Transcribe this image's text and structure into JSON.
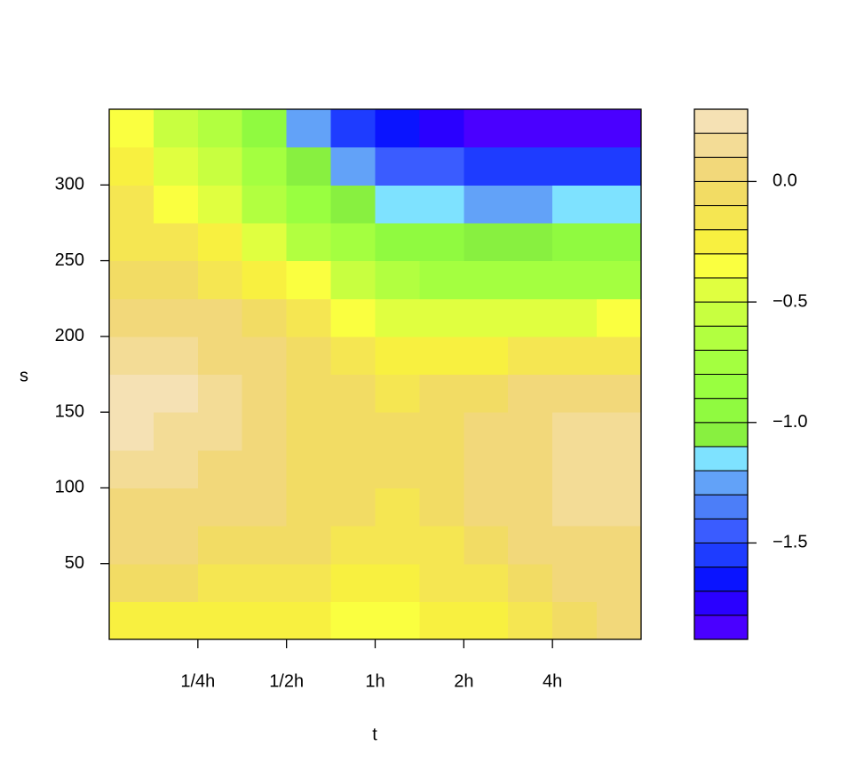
{
  "chart_data": {
    "type": "filled_contour",
    "xlabel": "t",
    "ylabel": "s",
    "log_x": true,
    "xlim": [
      0.125,
      8
    ],
    "xticks": [
      {
        "value": 0.25,
        "label": "1/4h"
      },
      {
        "value": 0.5,
        "label": "1/2h"
      },
      {
        "value": 1,
        "label": "1h"
      },
      {
        "value": 2,
        "label": "2h"
      },
      {
        "value": 4,
        "label": "4h"
      }
    ],
    "ylim": [
      0,
      350
    ],
    "yticks": [
      50,
      100,
      150,
      200,
      250,
      300
    ],
    "x": [
      0.1487,
      0.2102,
      0.2973,
      0.4204,
      0.5946,
      0.8409,
      1.1892,
      1.6818,
      2.3784,
      3.3636,
      4.7568,
      6.727
    ],
    "y": [
      12.5,
      37.5,
      62.5,
      87.5,
      112.5,
      137.5,
      162.5,
      187.5,
      212.5,
      237.5,
      262.5,
      287.5,
      312.5,
      337.5
    ],
    "z": [
      [
        -0.25,
        -0.25,
        -0.25,
        -0.28,
        -0.3,
        -0.32,
        -0.32,
        -0.3,
        -0.25,
        -0.15,
        -0.05,
        0.0
      ],
      [
        -0.1,
        -0.1,
        -0.12,
        -0.15,
        -0.2,
        -0.25,
        -0.25,
        -0.2,
        -0.12,
        -0.05,
        0.0,
        0.05
      ],
      [
        0.0,
        0.0,
        -0.02,
        -0.05,
        -0.1,
        -0.15,
        -0.15,
        -0.12,
        -0.05,
        0.02,
        0.05,
        0.08
      ],
      [
        0.08,
        0.08,
        0.05,
        0.0,
        -0.05,
        -0.1,
        -0.12,
        -0.08,
        0.0,
        0.05,
        0.1,
        0.15
      ],
      [
        0.12,
        0.12,
        0.08,
        0.02,
        -0.03,
        -0.08,
        -0.1,
        -0.05,
        0.02,
        0.08,
        0.12,
        0.18
      ],
      [
        0.2,
        0.18,
        0.12,
        0.05,
        -0.02,
        -0.08,
        -0.1,
        -0.06,
        0.0,
        0.06,
        0.1,
        0.15
      ],
      [
        0.22,
        0.2,
        0.12,
        0.05,
        -0.03,
        -0.1,
        -0.12,
        -0.1,
        -0.05,
        0.0,
        0.05,
        0.08
      ],
      [
        0.18,
        0.15,
        0.08,
        0.0,
        -0.08,
        -0.18,
        -0.25,
        -0.28,
        -0.25,
        -0.2,
        -0.15,
        -0.12
      ],
      [
        0.08,
        0.05,
        0.0,
        -0.1,
        -0.2,
        -0.32,
        -0.42,
        -0.48,
        -0.48,
        -0.45,
        -0.42,
        -0.4
      ],
      [
        -0.02,
        -0.08,
        -0.15,
        -0.25,
        -0.4,
        -0.55,
        -0.68,
        -0.75,
        -0.78,
        -0.78,
        -0.76,
        -0.75
      ],
      [
        -0.12,
        -0.2,
        -0.3,
        -0.45,
        -0.62,
        -0.8,
        -0.92,
        -1.0,
        -1.02,
        -1.02,
        -1.0,
        -1.0
      ],
      [
        -0.2,
        -0.32,
        -0.45,
        -0.62,
        -0.82,
        -1.02,
        -1.15,
        -1.2,
        -1.22,
        -1.22,
        -1.2,
        -1.2
      ],
      [
        -0.3,
        -0.42,
        -0.58,
        -0.78,
        -1.05,
        -1.28,
        -1.42,
        -1.5,
        -1.52,
        -1.55,
        -1.55,
        -1.55
      ],
      [
        -0.38,
        -0.52,
        -0.7,
        -0.95,
        -1.3,
        -1.55,
        -1.7,
        -1.78,
        -1.82,
        -1.85,
        -1.87,
        -1.88
      ]
    ],
    "levels": [
      -1.9,
      -1.8,
      -1.7,
      -1.6,
      -1.5,
      -1.4,
      -1.3,
      -1.2,
      -1.1,
      -1.0,
      -0.9,
      -0.8,
      -0.7,
      -0.6,
      -0.5,
      -0.4,
      -0.3,
      -0.2,
      -0.1,
      0.0,
      0.1,
      0.2,
      0.3
    ],
    "colors": [
      "#4a00ff",
      "#2a00ff",
      "#0a14ff",
      "#1e3cff",
      "#3a5cff",
      "#4c7ef8",
      "#62a2f8",
      "#7ee2ff",
      "#88f040",
      "#90fa40",
      "#99ff40",
      "#a4ff40",
      "#b2ff40",
      "#c8ff40",
      "#e0ff40",
      "#faff40",
      "#f8f040",
      "#f5e652",
      "#f2dc64",
      "#f2d87a",
      "#f3dc96",
      "#f5e1b4"
    ],
    "zlim": [
      -1.9,
      0.3
    ],
    "zticks": [
      {
        "value": -1.5,
        "label": "−1.5"
      },
      {
        "value": -1.0,
        "label": "−1.0"
      },
      {
        "value": -0.5,
        "label": "−0.5"
      },
      {
        "value": 0.0,
        "label": "0.0"
      }
    ]
  }
}
